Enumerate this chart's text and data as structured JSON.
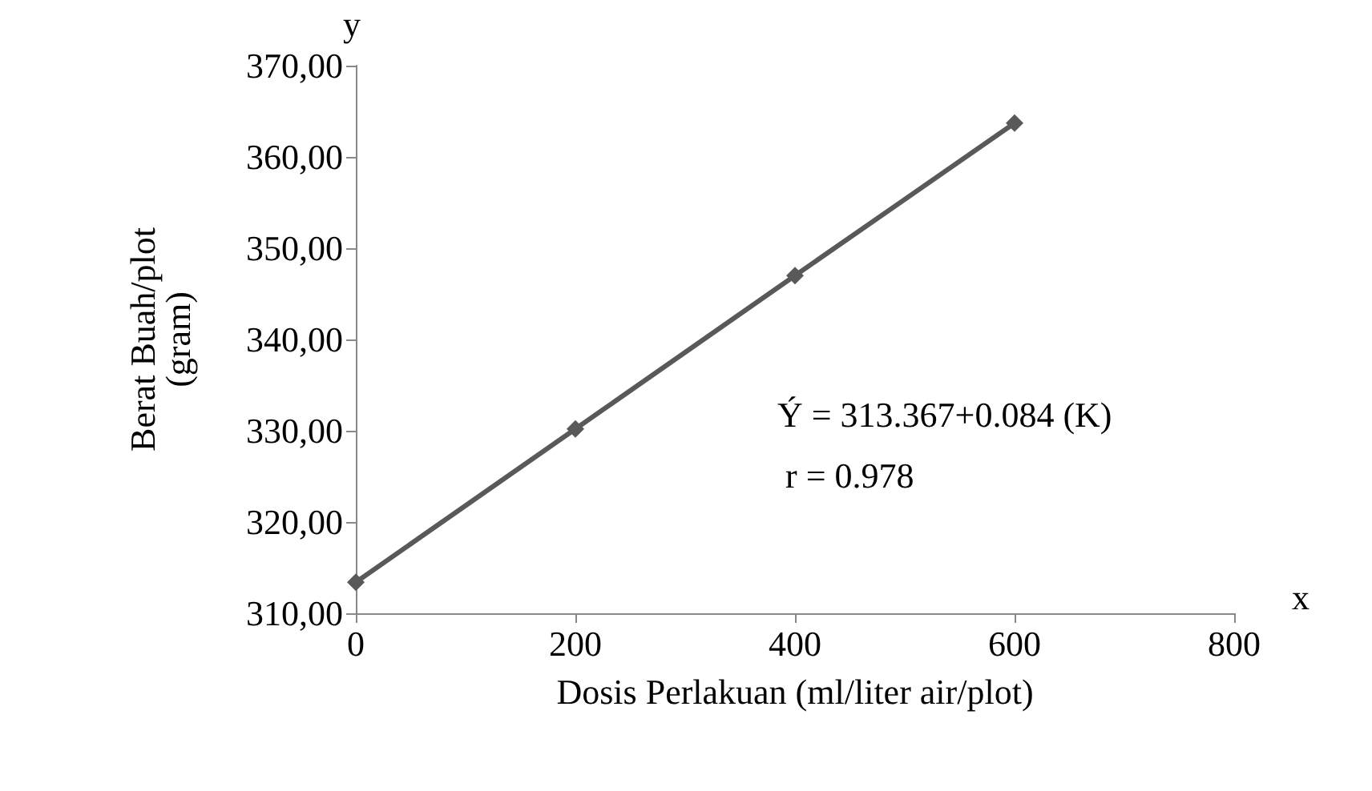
{
  "chart_data": {
    "type": "line",
    "xlabel": "Dosis Perlakuan (ml/liter air/plot)",
    "ylabel": "Berat Buah/plot\n(gram)",
    "x": [
      0,
      200,
      400,
      600
    ],
    "series": [
      {
        "color": "#595959",
        "values": [
          313.4,
          330.2,
          347.0,
          363.7
        ]
      }
    ],
    "xlim": [
      0,
      800
    ],
    "xticks": [
      0,
      200,
      400,
      600,
      800
    ],
    "ylim": [
      310,
      370
    ],
    "yticks": [
      {
        "value": 310,
        "label": "310,00"
      },
      {
        "value": 320,
        "label": "320,00"
      },
      {
        "value": 330,
        "label": "330,00"
      },
      {
        "value": 340,
        "label": "340,00"
      },
      {
        "value": 350,
        "label": "350,00"
      },
      {
        "value": 360,
        "label": "360,00"
      },
      {
        "value": 370,
        "label": "370,00"
      }
    ],
    "annotations": [
      "y",
      "x",
      "Ý = 313.367+0.084 (K)",
      "r = 0.978"
    ],
    "grid": false,
    "marker": "diamond",
    "line_style": "solid"
  }
}
